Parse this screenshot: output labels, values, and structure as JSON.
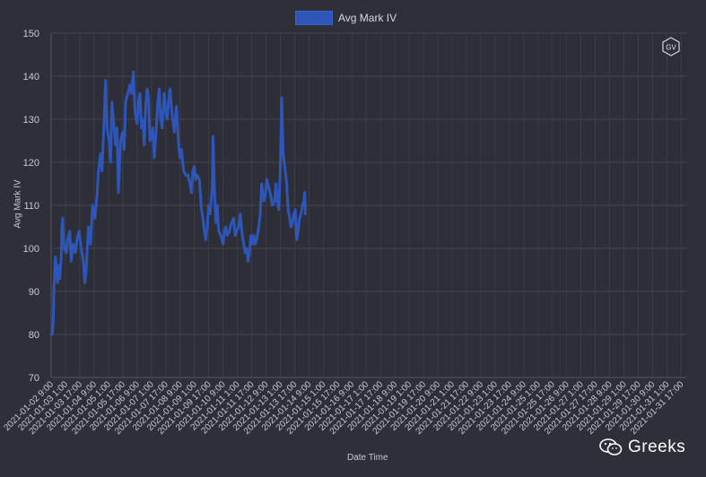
{
  "chart_data": {
    "type": "line",
    "title": "",
    "xlabel": "Date Time",
    "ylabel": "Avg Mark IV",
    "ylim": [
      70,
      150
    ],
    "yticks": [
      70,
      80,
      90,
      100,
      110,
      120,
      130,
      140,
      150
    ],
    "grid": true,
    "legend": "top",
    "series": [
      {
        "name": "Avg Mark IV",
        "color": "#2d56b8",
        "points": [
          [
            0,
            80
          ],
          [
            0.08,
            80
          ],
          [
            0.15,
            83
          ],
          [
            0.2,
            91
          ],
          [
            0.3,
            98
          ],
          [
            0.45,
            92
          ],
          [
            0.5,
            96
          ],
          [
            0.6,
            93
          ],
          [
            0.7,
            98
          ],
          [
            0.75,
            105
          ],
          [
            0.8,
            107
          ],
          [
            0.9,
            100
          ],
          [
            1.05,
            99
          ],
          [
            1.15,
            102
          ],
          [
            1.3,
            104
          ],
          [
            1.4,
            97
          ],
          [
            1.55,
            101
          ],
          [
            1.7,
            99
          ],
          [
            1.8,
            102
          ],
          [
            1.95,
            104
          ],
          [
            2.1,
            100
          ],
          [
            2.25,
            97
          ],
          [
            2.35,
            92
          ],
          [
            2.45,
            95
          ],
          [
            2.6,
            105
          ],
          [
            2.75,
            101
          ],
          [
            2.9,
            110
          ],
          [
            3.05,
            107
          ],
          [
            3.2,
            112
          ],
          [
            3.3,
            118
          ],
          [
            3.45,
            122
          ],
          [
            3.55,
            118
          ],
          [
            3.7,
            130
          ],
          [
            3.8,
            139
          ],
          [
            3.9,
            128
          ],
          [
            4.05,
            125
          ],
          [
            4.15,
            120
          ],
          [
            4.25,
            134
          ],
          [
            4.4,
            128
          ],
          [
            4.5,
            124
          ],
          [
            4.6,
            128
          ],
          [
            4.7,
            113
          ],
          [
            4.85,
            125
          ],
          [
            5.0,
            127
          ],
          [
            5.1,
            123
          ],
          [
            5.2,
            134
          ],
          [
            5.35,
            136
          ],
          [
            5.5,
            138
          ],
          [
            5.6,
            136
          ],
          [
            5.75,
            141
          ],
          [
            5.85,
            132
          ],
          [
            6.0,
            129
          ],
          [
            6.1,
            134
          ],
          [
            6.2,
            136
          ],
          [
            6.3,
            128
          ],
          [
            6.4,
            130
          ],
          [
            6.5,
            124
          ],
          [
            6.6,
            133
          ],
          [
            6.7,
            137
          ],
          [
            6.8,
            135
          ],
          [
            6.9,
            125
          ],
          [
            7.0,
            126
          ],
          [
            7.1,
            128
          ],
          [
            7.2,
            121
          ],
          [
            7.35,
            128
          ],
          [
            7.45,
            134
          ],
          [
            7.55,
            137
          ],
          [
            7.65,
            130
          ],
          [
            7.75,
            128
          ],
          [
            7.9,
            136
          ],
          [
            8.0,
            132
          ],
          [
            8.1,
            130
          ],
          [
            8.2,
            134
          ],
          [
            8.3,
            137
          ],
          [
            8.45,
            131
          ],
          [
            8.6,
            127
          ],
          [
            8.75,
            133
          ],
          [
            8.9,
            124
          ],
          [
            9.0,
            121
          ],
          [
            9.1,
            123
          ],
          [
            9.25,
            118
          ],
          [
            9.4,
            117
          ],
          [
            9.55,
            117
          ],
          [
            9.7,
            115
          ],
          [
            9.8,
            113
          ],
          [
            9.9,
            118
          ],
          [
            10.0,
            119
          ],
          [
            10.1,
            116
          ],
          [
            10.2,
            117
          ],
          [
            10.35,
            116
          ],
          [
            10.5,
            109
          ],
          [
            10.6,
            107
          ],
          [
            10.7,
            104
          ],
          [
            10.8,
            102
          ],
          [
            10.9,
            105
          ],
          [
            11.0,
            110
          ],
          [
            11.1,
            108
          ],
          [
            11.25,
            114
          ],
          [
            11.3,
            126
          ],
          [
            11.4,
            114
          ],
          [
            11.5,
            106
          ],
          [
            11.6,
            110
          ],
          [
            11.7,
            104
          ],
          [
            11.85,
            103
          ],
          [
            12.0,
            101
          ],
          [
            12.1,
            104
          ],
          [
            12.2,
            105
          ],
          [
            12.3,
            103
          ],
          [
            12.45,
            104
          ],
          [
            12.6,
            106
          ],
          [
            12.75,
            107
          ],
          [
            12.85,
            103
          ],
          [
            12.95,
            104
          ],
          [
            13.1,
            105
          ],
          [
            13.2,
            108
          ],
          [
            13.35,
            103
          ],
          [
            13.45,
            101
          ],
          [
            13.55,
            99
          ],
          [
            13.65,
            100
          ],
          [
            13.75,
            97
          ],
          [
            13.85,
            99
          ],
          [
            13.95,
            103
          ],
          [
            14.05,
            101
          ],
          [
            14.15,
            103
          ],
          [
            14.25,
            101
          ],
          [
            14.35,
            102
          ],
          [
            14.5,
            105
          ],
          [
            14.6,
            108
          ],
          [
            14.7,
            115
          ],
          [
            14.85,
            111
          ],
          [
            14.95,
            112
          ],
          [
            15.05,
            116
          ],
          [
            15.2,
            114
          ],
          [
            15.35,
            112
          ],
          [
            15.45,
            110
          ],
          [
            15.6,
            111
          ],
          [
            15.7,
            115
          ],
          [
            15.8,
            111
          ],
          [
            15.9,
            109
          ],
          [
            16.0,
            118
          ],
          [
            16.1,
            135
          ],
          [
            16.2,
            122
          ],
          [
            16.35,
            118
          ],
          [
            16.45,
            115
          ],
          [
            16.55,
            109
          ],
          [
            16.65,
            107
          ],
          [
            16.75,
            105
          ],
          [
            16.85,
            106
          ],
          [
            16.95,
            108
          ],
          [
            17.05,
            109
          ],
          [
            17.15,
            102
          ],
          [
            17.25,
            104
          ],
          [
            17.35,
            107
          ],
          [
            17.45,
            108
          ],
          [
            17.55,
            110
          ],
          [
            17.65,
            111
          ],
          [
            17.7,
            113
          ],
          [
            17.75,
            108
          ]
        ]
      }
    ],
    "x_tick_labels": [
      "2021-01-02 9:00",
      "2021-01-03 1:00",
      "2021-01-03 17:00",
      "2021-01-04 9:00",
      "2021-01-05 1:00",
      "2021-01-05 17:00",
      "2021-01-06 9:00",
      "2021-01-07 1:00",
      "2021-01-07 17:00",
      "2021-01-08 9:00",
      "2021-01-09 1:00",
      "2021-01-09 17:00",
      "2021-01-10 9:00",
      "2021-01-11 1:00",
      "2021-01-11 17:00",
      "2021-01-12 9:00",
      "2021-01-13 1:00",
      "2021-01-13 17:00",
      "2021-01-14 9:00",
      "2021-01-15 1:00",
      "2021-01-15 17:00",
      "2021-01-16 9:00",
      "2021-01-17 1:00",
      "2021-01-17 17:00",
      "2021-01-18 9:00",
      "2021-01-19 1:00",
      "2021-01-19 17:00",
      "2021-01-20 9:00",
      "2021-01-21 1:00",
      "2021-01-21 17:00",
      "2021-01-22 9:00",
      "2021-01-23 1:00",
      "2021-01-23 17:00",
      "2021-01-24 9:00",
      "2021-01-25 1:00",
      "2021-01-25 17:00",
      "2021-01-26 9:00",
      "2021-01-27 1:00",
      "2021-01-27 17:00",
      "2021-01-28 9:00",
      "2021-01-29 1:00",
      "2021-01-29 17:00",
      "2021-01-30 9:00",
      "2021-01-31 1:00",
      "2021-01-31 17:00"
    ]
  },
  "logo": {
    "text": "GV"
  },
  "watermark": {
    "text": "Greeks",
    "icon": "wechat-icon"
  }
}
